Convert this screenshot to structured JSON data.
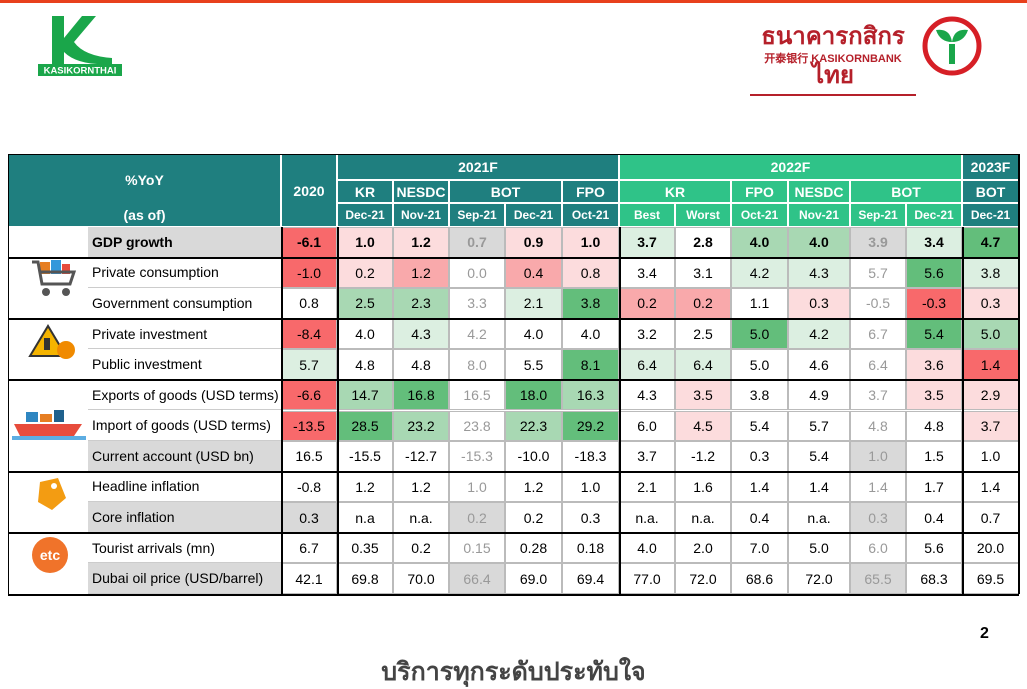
{
  "header": {
    "brand_left": "KASIKORNTHAI",
    "brand_thai": "ธนาคารกสิกรไทย",
    "brand_en": "开泰银行 KASIKORNBANK"
  },
  "table": {
    "corner_top": "%YoY",
    "corner_bottom": "(as of)",
    "base_year": "2020",
    "etc_icon": "etc",
    "groups": [
      {
        "label": "2021F",
        "sources": [
          {
            "name": "KR",
            "as_of": [
              "Dec-21"
            ]
          },
          {
            "name": "NESDC",
            "as_of": [
              "Nov-21"
            ]
          },
          {
            "name": "BOT",
            "as_of": [
              "Sep-21",
              "Dec-21"
            ]
          },
          {
            "name": "FPO",
            "as_of": [
              "Oct-21"
            ]
          }
        ]
      },
      {
        "label": "2022F",
        "sources": [
          {
            "name": "KR",
            "as_of": [
              "Best",
              "Worst"
            ]
          },
          {
            "name": "FPO",
            "as_of": [
              "Oct-21"
            ]
          },
          {
            "name": "NESDC",
            "as_of": [
              "Nov-21"
            ]
          },
          {
            "name": "BOT",
            "as_of": [
              "Sep-21",
              "Dec-21"
            ]
          }
        ]
      },
      {
        "label": "2023F",
        "sources": [
          {
            "name": "BOT",
            "as_of": [
              "Dec-21"
            ]
          }
        ]
      }
    ],
    "rows": [
      {
        "label": "GDP growth",
        "values": [
          "-6.1",
          "1.0",
          "1.2",
          "0.7",
          "0.9",
          "1.0",
          "3.7",
          "2.8",
          "4.0",
          "4.0",
          "3.9",
          "3.4",
          "4.7"
        ]
      },
      {
        "label": "Private consumption",
        "values": [
          "-1.0",
          "0.2",
          "1.2",
          "0.0",
          "0.4",
          "0.8",
          "3.4",
          "3.1",
          "4.2",
          "4.3",
          "5.7",
          "5.6",
          "3.8"
        ]
      },
      {
        "label": "Government consumption",
        "values": [
          "0.8",
          "2.5",
          "2.3",
          "3.3",
          "2.1",
          "3.8",
          "0.2",
          "0.2",
          "1.1",
          "0.3",
          "-0.5",
          "-0.3",
          "0.3"
        ]
      },
      {
        "label": "Private investment",
        "values": [
          "-8.4",
          "4.0",
          "4.3",
          "4.2",
          "4.0",
          "4.0",
          "3.2",
          "2.5",
          "5.0",
          "4.2",
          "6.7",
          "5.4",
          "5.0"
        ]
      },
      {
        "label": "Public investment",
        "values": [
          "5.7",
          "4.8",
          "4.8",
          "8.0",
          "5.5",
          "8.1",
          "6.4",
          "6.4",
          "5.0",
          "4.6",
          "6.4",
          "3.6",
          "1.4"
        ]
      },
      {
        "label": "Exports of goods (USD terms)",
        "values": [
          "-6.6",
          "14.7",
          "16.8",
          "16.5",
          "18.0",
          "16.3",
          "4.3",
          "3.5",
          "3.8",
          "4.9",
          "3.7",
          "3.5",
          "2.9"
        ]
      },
      {
        "label": "Import of goods (USD terms)",
        "values": [
          "-13.5",
          "28.5",
          "23.2",
          "23.8",
          "22.3",
          "29.2",
          "6.0",
          "4.5",
          "5.4",
          "5.7",
          "4.8",
          "4.8",
          "3.7"
        ]
      },
      {
        "label": "Current account (USD bn)",
        "values": [
          "16.5",
          "-15.5",
          "-12.7",
          "-15.3",
          "-10.0",
          "-18.3",
          "3.7",
          "-1.2",
          "0.3",
          "5.4",
          "1.0",
          "1.5",
          "1.0"
        ]
      },
      {
        "label": "Headline inflation",
        "values": [
          "-0.8",
          "1.2",
          "1.2",
          "1.0",
          "1.2",
          "1.0",
          "2.1",
          "1.6",
          "1.4",
          "1.4",
          "1.4",
          "1.7",
          "1.4"
        ]
      },
      {
        "label": "Core inflation",
        "values": [
          "0.3",
          "n.a",
          "n.a.",
          "0.2",
          "0.2",
          "0.3",
          "n.a.",
          "n.a.",
          "0.4",
          "n.a.",
          "0.3",
          "0.4",
          "0.7"
        ]
      },
      {
        "label": "Tourist arrivals (mn)",
        "values": [
          "6.7",
          "0.35",
          "0.2",
          "0.15",
          "0.28",
          "0.18",
          "4.0",
          "2.0",
          "7.0",
          "5.0",
          "6.0",
          "5.6",
          "20.0"
        ]
      },
      {
        "label": "Dubai oil price (USD/barrel)",
        "values": [
          "42.1",
          "69.8",
          "70.0",
          "66.4",
          "69.0",
          "69.4",
          "77.0",
          "72.0",
          "68.6",
          "72.0",
          "65.5",
          "68.3",
          "69.5"
        ]
      }
    ]
  },
  "footer": {
    "page": "2",
    "slogan": "บริการทุกระดับประทับใจ"
  }
}
